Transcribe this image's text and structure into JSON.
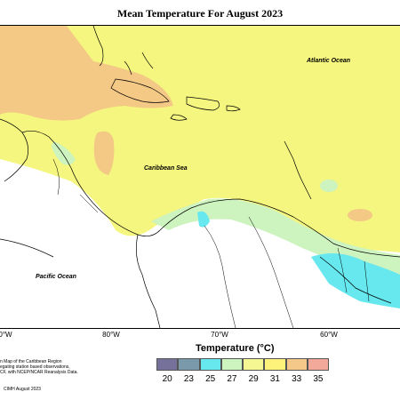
{
  "title": "Mean Temperature For August 2023",
  "map": {
    "ocean_labels": {
      "atlantic": "Atlantic Ocean",
      "caribbean": "Caribbean Sea",
      "pacific": "Pacific Ocean"
    },
    "longitude_ticks": [
      "0°W",
      "80°W",
      "70°W",
      "60°W"
    ]
  },
  "legend": {
    "title": "Temperature (°C)",
    "values": [
      "20",
      "23",
      "25",
      "27",
      "29",
      "31",
      "33",
      "35"
    ],
    "colors": [
      "#76719a",
      "#7a9aab",
      "#66e8ee",
      "#cdf3bf",
      "#f5f792",
      "#fdf27a",
      "#f4c889",
      "#f2a99a"
    ]
  },
  "description": "n Map of the Caribbean Region\negating station based observations,\nCF, with NCEP/NCAR Reanalysis Data.",
  "credit": "CIMH August 2023"
}
